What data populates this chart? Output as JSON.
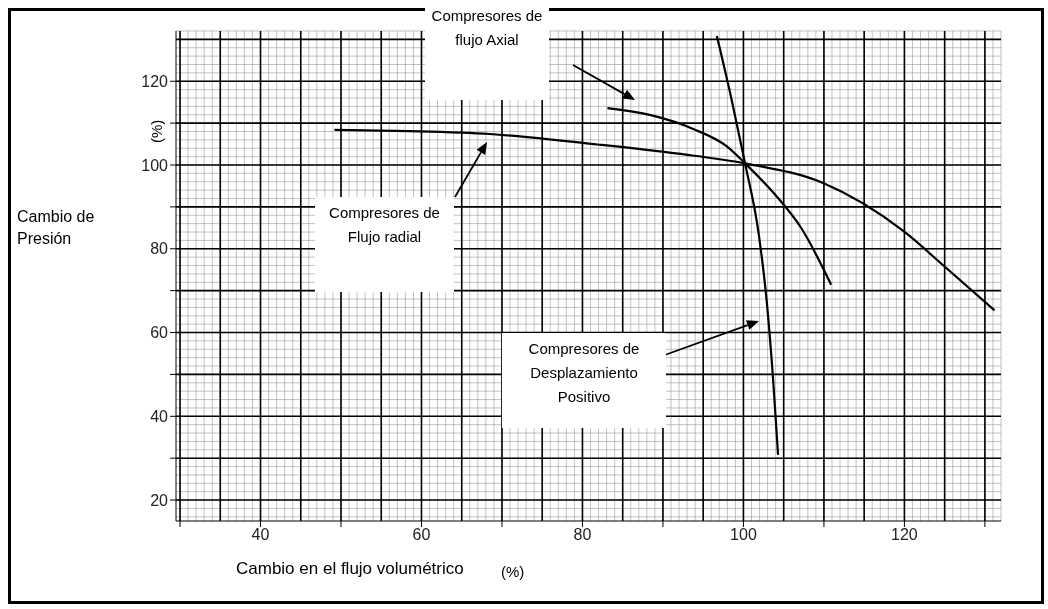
{
  "chart_data": {
    "type": "line",
    "xlabel": "Cambio en el flujo volumétrico",
    "ylabel": "Cambio de Presión",
    "xlim": [
      29.5,
      132
    ],
    "ylim": [
      15,
      132
    ],
    "xticks": [
      {
        "value": 30,
        "label": null
      },
      40,
      {
        "value": 50,
        "label": null
      },
      60,
      {
        "value": 70,
        "label": null
      },
      80,
      {
        "value": 90,
        "label": null
      },
      100,
      {
        "value": 110,
        "label": null
      },
      120,
      {
        "value": 130,
        "label": null
      }
    ],
    "yticks": [
      20,
      {
        "value": 30,
        "label": null
      },
      40,
      {
        "value": 50,
        "label": null
      },
      60,
      {
        "value": 70,
        "label": null
      },
      80,
      {
        "value": 90,
        "label": null
      },
      100,
      {
        "value": 110,
        "label": null
      },
      120
    ],
    "grid": true,
    "marker": "none",
    "line_style": "solid",
    "series": [
      {
        "color": "#000000",
        "x": [
          49.2,
          58.5,
          68.5,
          81.9,
          91.9,
          100.2,
          109.9,
          119.9,
          125.2,
          131.2
        ],
        "values": [
          108.4,
          108.1,
          107.4,
          104.9,
          102.7,
          100.4,
          95.7,
          84.2,
          75.4,
          65.3
        ]
      },
      {
        "color": "#000000",
        "x": [
          83.1,
          88.5,
          93.9,
          97.9,
          100.2,
          103.9,
          107.2,
          110.9
        ],
        "values": [
          113.6,
          111.9,
          108.5,
          104.5,
          100.4,
          93,
          84.9,
          71.4
        ]
      },
      {
        "color": "#000000",
        "x": [
          96.7,
          98.5,
          100.2,
          101.9,
          102.9,
          103.7,
          104.3
        ],
        "values": [
          130.8,
          115.9,
          100.4,
          83.5,
          67.3,
          48.4,
          30.8
        ]
      }
    ],
    "annotations": [
      "Compresores de flujo Axial",
      "Compresores de Flujo radial",
      "Compresores de Desplazamiento Positivo",
      "(%)",
      "(%)"
    ]
  }
}
